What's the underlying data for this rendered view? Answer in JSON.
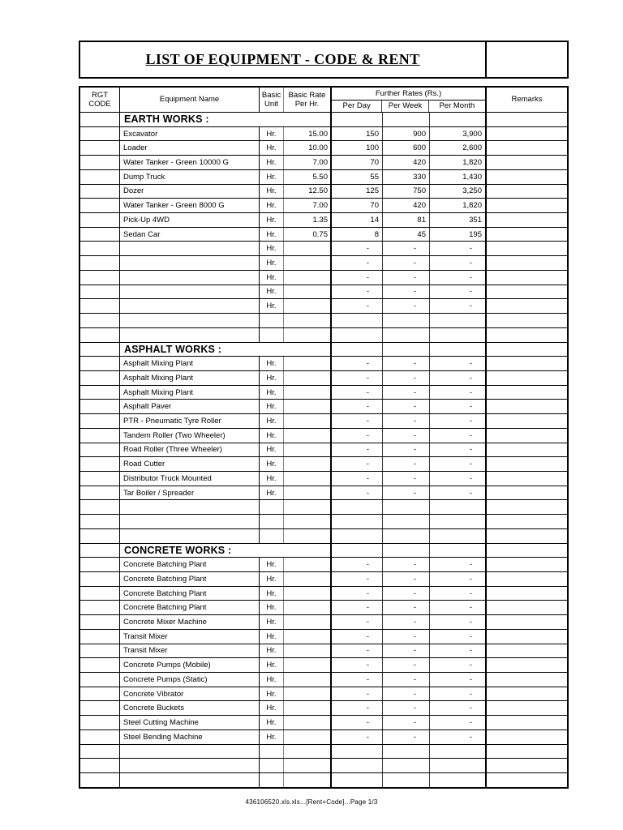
{
  "title": {
    "text": "LIST OF EQUIPMENT - CODE & RENT"
  },
  "footer": {
    "text": "436106520.xls.xls...[Rent+Code]...Page 1/3"
  },
  "table": {
    "header": {
      "rgt_code_line1": "RGT",
      "rgt_code_line2": "CODE",
      "equipment_name": "Equipment Name",
      "basic_unit_line1": "Basic",
      "basic_unit_line2": "Unit",
      "basic_rate_line1": "Basic Rate",
      "basic_rate_line2": "Per Hr.",
      "further_rates": "Further Rates (Rs.)",
      "per_day": "Per Day",
      "per_week": "Per Week",
      "per_month": "Per Month",
      "remarks": "Remarks"
    },
    "rows": [
      {
        "type": "section",
        "label": "EARTH WORKS :"
      },
      {
        "type": "data",
        "name": "Excavator",
        "unit": "Hr.",
        "rate": "15.00",
        "day": "150",
        "week": "900",
        "month": "3,900"
      },
      {
        "type": "data",
        "name": "Loader",
        "unit": "Hr.",
        "rate": "10.00",
        "day": "100",
        "week": "600",
        "month": "2,600"
      },
      {
        "type": "data",
        "name": "Water Tanker - Green 10000 G",
        "unit": "Hr.",
        "rate": "7.00",
        "day": "70",
        "week": "420",
        "month": "1,820"
      },
      {
        "type": "data",
        "name": "Dump Truck",
        "unit": "Hr.",
        "rate": "5.50",
        "day": "55",
        "week": "330",
        "month": "1,430"
      },
      {
        "type": "data",
        "name": "Dozer",
        "unit": "Hr.",
        "rate": "12.50",
        "day": "125",
        "week": "750",
        "month": "3,250"
      },
      {
        "type": "data",
        "name": "Water Tanker - Green 8000 G",
        "unit": "Hr.",
        "rate": "7.00",
        "day": "70",
        "week": "420",
        "month": "1,820"
      },
      {
        "type": "data",
        "name": "Pick-Up 4WD",
        "unit": "Hr.",
        "rate": "1.35",
        "day": "14",
        "week": "81",
        "month": "351"
      },
      {
        "type": "data",
        "name": "Sedan Car",
        "unit": "Hr.",
        "rate": "0.75",
        "day": "8",
        "week": "45",
        "month": "195"
      },
      {
        "type": "data",
        "name": "",
        "unit": "Hr.",
        "rate": "",
        "day": "-",
        "week": "-",
        "month": "-"
      },
      {
        "type": "data",
        "name": "",
        "unit": "Hr.",
        "rate": "",
        "day": "-",
        "week": "-",
        "month": "-"
      },
      {
        "type": "data",
        "name": "",
        "unit": "Hr.",
        "rate": "",
        "day": "-",
        "week": "-",
        "month": "-"
      },
      {
        "type": "data",
        "name": "",
        "unit": "Hr.",
        "rate": "",
        "day": "-",
        "week": "-",
        "month": "-"
      },
      {
        "type": "data",
        "name": "",
        "unit": "Hr.",
        "rate": "",
        "day": "-",
        "week": "-",
        "month": "-"
      },
      {
        "type": "blank"
      },
      {
        "type": "blank"
      },
      {
        "type": "section",
        "label": "ASPHALT WORKS :"
      },
      {
        "type": "data",
        "name": "Asphalt Mixing Plant",
        "unit": "Hr.",
        "rate": "",
        "day": "-",
        "week": "-",
        "month": "-"
      },
      {
        "type": "data",
        "name": "Asphalt Mixing Plant",
        "unit": "Hr.",
        "rate": "",
        "day": "-",
        "week": "-",
        "month": "-"
      },
      {
        "type": "data",
        "name": "Asphalt Mixing Plant",
        "unit": "Hr.",
        "rate": "",
        "day": "-",
        "week": "-",
        "month": "-"
      },
      {
        "type": "data",
        "name": "Asphalt Paver",
        "unit": "Hr.",
        "rate": "",
        "day": "-",
        "week": "-",
        "month": "-"
      },
      {
        "type": "data",
        "name": "PTR - Pneumatic Tyre Roller",
        "unit": "Hr.",
        "rate": "",
        "day": "-",
        "week": "-",
        "month": "-"
      },
      {
        "type": "data",
        "name": "Tandem Roller (Two Wheeler)",
        "unit": "Hr.",
        "rate": "",
        "day": "-",
        "week": "-",
        "month": "-"
      },
      {
        "type": "data",
        "name": "Road Roller (Three Wheeler)",
        "unit": "Hr.",
        "rate": "",
        "day": "-",
        "week": "-",
        "month": "-"
      },
      {
        "type": "data",
        "name": "Road Cutter",
        "unit": "Hr.",
        "rate": "",
        "day": "-",
        "week": "-",
        "month": "-"
      },
      {
        "type": "data",
        "name": "Distributor Truck Mounted",
        "unit": "Hr.",
        "rate": "",
        "day": "-",
        "week": "-",
        "month": "-"
      },
      {
        "type": "data",
        "name": "Tar Boiler / Spreader",
        "unit": "Hr.",
        "rate": "",
        "day": "-",
        "week": "-",
        "month": "-"
      },
      {
        "type": "blank"
      },
      {
        "type": "blank"
      },
      {
        "type": "blank"
      },
      {
        "type": "section",
        "label": "CONCRETE WORKS :"
      },
      {
        "type": "data",
        "name": "Concrete Batching Plant",
        "unit": "Hr.",
        "rate": "",
        "day": "-",
        "week": "-",
        "month": "-"
      },
      {
        "type": "data",
        "name": "Concrete Batching Plant",
        "unit": "Hr.",
        "rate": "",
        "day": "-",
        "week": "-",
        "month": "-"
      },
      {
        "type": "data",
        "name": "Concrete Batching Plant",
        "unit": "Hr.",
        "rate": "",
        "day": "-",
        "week": "-",
        "month": "-"
      },
      {
        "type": "data",
        "name": "Concrete Batching Plant",
        "unit": "Hr.",
        "rate": "",
        "day": "-",
        "week": "-",
        "month": "-"
      },
      {
        "type": "data",
        "name": "Concrete Mixer Machine",
        "unit": "Hr.",
        "rate": "",
        "day": "-",
        "week": "-",
        "month": "-"
      },
      {
        "type": "data",
        "name": "Transit Mixer",
        "unit": "Hr.",
        "rate": "",
        "day": "-",
        "week": "-",
        "month": "-"
      },
      {
        "type": "data",
        "name": "Transit Mixer",
        "unit": "Hr.",
        "rate": "",
        "day": "-",
        "week": "-",
        "month": "-"
      },
      {
        "type": "data",
        "name": "Concrete Pumps (Mobile)",
        "unit": "Hr.",
        "rate": "",
        "day": "-",
        "week": "-",
        "month": "-"
      },
      {
        "type": "data",
        "name": "Concrete Pumps (Static)",
        "unit": "Hr.",
        "rate": "",
        "day": "-",
        "week": "-",
        "month": "-"
      },
      {
        "type": "data",
        "name": "Concrete Vibrator",
        "unit": "Hr.",
        "rate": "",
        "day": "-",
        "week": "-",
        "month": "-"
      },
      {
        "type": "data",
        "name": "Concrete Buckets",
        "unit": "Hr.",
        "rate": "",
        "day": "-",
        "week": "-",
        "month": "-"
      },
      {
        "type": "data",
        "name": "Steel Cutting Machine",
        "unit": "Hr.",
        "rate": "",
        "day": "-",
        "week": "-",
        "month": "-"
      },
      {
        "type": "data",
        "name": "Steel Bending Machine",
        "unit": "Hr.",
        "rate": "",
        "day": "-",
        "week": "-",
        "month": "-"
      },
      {
        "type": "blank"
      },
      {
        "type": "blank"
      },
      {
        "type": "blank"
      }
    ]
  }
}
